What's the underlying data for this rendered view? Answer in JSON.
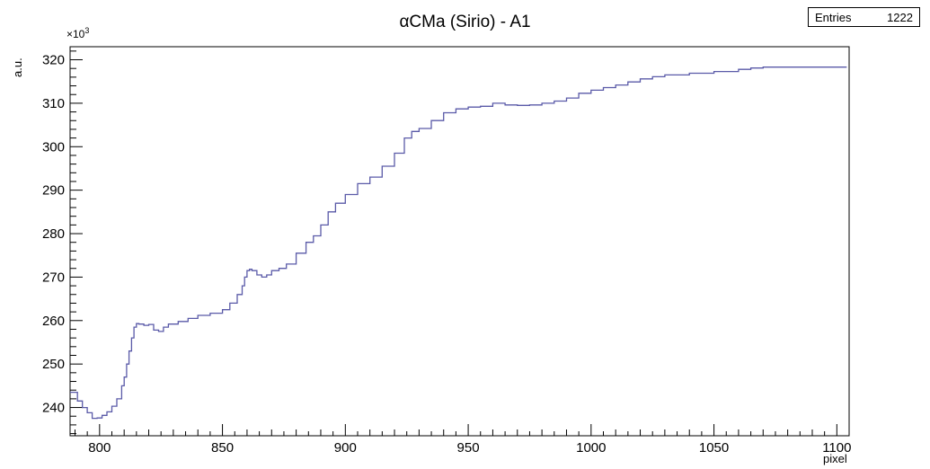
{
  "chart_data": {
    "type": "line",
    "title": "αCMa (Sirio) - A1",
    "xlabel": "pixel",
    "ylabel": "a.u.",
    "y_multiplier_label": "×10",
    "y_multiplier_exponent": "3",
    "xlim": [
      788,
      1105
    ],
    "ylim": [
      233.5,
      323
    ],
    "x_ticks": [
      800,
      850,
      900,
      950,
      1000,
      1050,
      1100
    ],
    "y_ticks": [
      240,
      250,
      260,
      270,
      280,
      290,
      300,
      310,
      320
    ],
    "line_color": "#5a5aa8",
    "stats": {
      "label": "Entries",
      "value": "1222"
    },
    "series": [
      {
        "x": [
          788,
          791,
          793,
          795,
          797,
          799,
          801,
          803,
          805,
          807,
          809,
          810,
          811,
          812,
          813,
          814,
          815,
          816,
          818,
          820,
          822,
          824,
          826,
          828,
          832,
          836,
          840,
          845,
          850,
          853,
          856,
          858,
          859,
          860,
          861,
          862,
          864,
          866,
          868,
          870,
          873,
          876,
          880,
          884,
          887,
          890,
          893,
          896,
          900,
          905,
          910,
          915,
          920,
          924,
          927,
          930,
          935,
          940,
          945,
          950,
          955,
          960,
          962,
          965,
          970,
          975,
          980,
          985,
          990,
          995,
          1000,
          1005,
          1010,
          1015,
          1020,
          1025,
          1030,
          1040,
          1050,
          1060,
          1065,
          1070,
          1080,
          1090,
          1104
        ],
        "y": [
          243.5,
          241.5,
          240,
          238.8,
          237.5,
          237.6,
          238.2,
          239,
          240.3,
          242,
          245,
          247,
          250,
          253,
          256,
          258.5,
          259.3,
          259.2,
          258.9,
          259.1,
          257.8,
          257.5,
          258.5,
          259.2,
          259.8,
          260.5,
          261.2,
          261.7,
          262.5,
          264,
          266,
          268,
          270,
          271.5,
          271.8,
          271.5,
          270.5,
          270,
          270.5,
          271.5,
          272,
          273,
          275.5,
          278,
          279.5,
          282,
          285,
          287,
          289,
          291.5,
          293,
          295.5,
          298.5,
          302,
          303.5,
          304.2,
          306,
          307.8,
          308.7,
          309.1,
          309.3,
          310,
          310,
          309.6,
          309.5,
          309.6,
          310,
          310.5,
          311.2,
          312.3,
          313,
          313.6,
          314.2,
          314.9,
          315.6,
          316.1,
          316.5,
          316.9,
          317.3,
          317.8,
          318.1,
          318.3,
          318.3,
          318.3,
          318.3
        ]
      }
    ]
  }
}
